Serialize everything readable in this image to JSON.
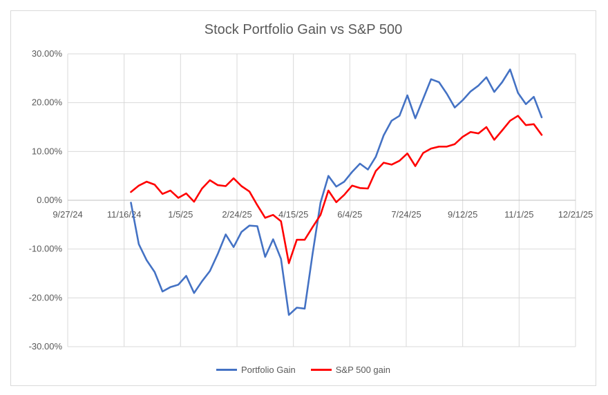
{
  "chart_data": {
    "type": "line",
    "title": "Stock Portfolio Gain vs S&P 500",
    "xlabel": "",
    "ylabel": "",
    "x_axis": {
      "min_date": "2024-09-27",
      "max_date": "2025-12-21",
      "tick_dates": [
        "2024-09-27",
        "2024-11-16",
        "2025-01-05",
        "2025-02-24",
        "2025-04-15",
        "2025-06-04",
        "2025-07-24",
        "2025-09-12",
        "2025-11-01",
        "2025-12-21"
      ],
      "tick_labels": [
        "9/27/24",
        "11/16/24",
        "1/5/25",
        "2/24/25",
        "4/15/25",
        "6/4/25",
        "7/24/25",
        "9/12/25",
        "11/1/25",
        "12/21/25"
      ]
    },
    "y_axis": {
      "ylim": [
        -0.3,
        0.3
      ],
      "ticks": [
        -0.3,
        -0.2,
        -0.1,
        0.0,
        0.1,
        0.2,
        0.3
      ],
      "tick_labels": [
        "-30.00%",
        "-20.00%",
        "-10.00%",
        "0.00%",
        "10.00%",
        "20.00%",
        "30.00%"
      ]
    },
    "grid": "horizontal and vertical gridlines",
    "legend_position": "bottom",
    "series": [
      {
        "name": "Portfolio Gain",
        "color": "#4472c4",
        "x": [
          "2024-11-22",
          "2024-11-29",
          "2024-12-06",
          "2024-12-13",
          "2024-12-20",
          "2024-12-27",
          "2025-01-03",
          "2025-01-10",
          "2025-01-17",
          "2025-01-24",
          "2025-01-31",
          "2025-02-07",
          "2025-02-14",
          "2025-02-21",
          "2025-02-28",
          "2025-03-07",
          "2025-03-14",
          "2025-03-21",
          "2025-03-28",
          "2025-04-04",
          "2025-04-11",
          "2025-04-18",
          "2025-04-25",
          "2025-05-02",
          "2025-05-09",
          "2025-05-16",
          "2025-05-23",
          "2025-05-30",
          "2025-06-06",
          "2025-06-13",
          "2025-06-20",
          "2025-06-27",
          "2025-07-04",
          "2025-07-11",
          "2025-07-18",
          "2025-07-25",
          "2025-08-01",
          "2025-08-08",
          "2025-08-15",
          "2025-08-22",
          "2025-08-29",
          "2025-09-05",
          "2025-09-12",
          "2025-09-19",
          "2025-09-26",
          "2025-10-03",
          "2025-10-10",
          "2025-10-17",
          "2025-10-24",
          "2025-10-31",
          "2025-11-07",
          "2025-11-14",
          "2025-11-21"
        ],
        "y": [
          -0.005,
          -0.09,
          -0.123,
          -0.147,
          -0.187,
          -0.178,
          -0.173,
          -0.155,
          -0.19,
          -0.166,
          -0.145,
          -0.11,
          -0.07,
          -0.096,
          -0.065,
          -0.052,
          -0.053,
          -0.116,
          -0.08,
          -0.12,
          -0.235,
          -0.22,
          -0.222,
          -0.11,
          -0.005,
          0.05,
          0.028,
          0.038,
          0.058,
          0.075,
          0.063,
          0.089,
          0.133,
          0.163,
          0.173,
          0.215,
          0.168,
          0.208,
          0.248,
          0.242,
          0.218,
          0.19,
          0.205,
          0.223,
          0.235,
          0.252,
          0.222,
          0.242,
          0.268,
          0.22,
          0.197,
          0.212,
          0.17
        ]
      },
      {
        "name": "S&P 500 gain",
        "color": "#ff0000",
        "x": [
          "2024-11-22",
          "2024-11-29",
          "2024-12-06",
          "2024-12-13",
          "2024-12-20",
          "2024-12-27",
          "2025-01-03",
          "2025-01-10",
          "2025-01-17",
          "2025-01-24",
          "2025-01-31",
          "2025-02-07",
          "2025-02-14",
          "2025-02-21",
          "2025-02-28",
          "2025-03-07",
          "2025-03-14",
          "2025-03-21",
          "2025-03-28",
          "2025-04-04",
          "2025-04-11",
          "2025-04-18",
          "2025-04-25",
          "2025-05-02",
          "2025-05-09",
          "2025-05-16",
          "2025-05-23",
          "2025-05-30",
          "2025-06-06",
          "2025-06-13",
          "2025-06-20",
          "2025-06-27",
          "2025-07-04",
          "2025-07-11",
          "2025-07-18",
          "2025-07-25",
          "2025-08-01",
          "2025-08-08",
          "2025-08-15",
          "2025-08-22",
          "2025-08-29",
          "2025-09-05",
          "2025-09-12",
          "2025-09-19",
          "2025-09-26",
          "2025-10-03",
          "2025-10-10",
          "2025-10-17",
          "2025-10-24",
          "2025-10-31",
          "2025-11-07",
          "2025-11-14",
          "2025-11-21"
        ],
        "y": [
          0.017,
          0.03,
          0.038,
          0.032,
          0.013,
          0.02,
          0.005,
          0.014,
          -0.003,
          0.024,
          0.041,
          0.031,
          0.029,
          0.045,
          0.029,
          0.018,
          -0.01,
          -0.036,
          -0.03,
          -0.043,
          -0.129,
          -0.081,
          -0.081,
          -0.055,
          -0.03,
          0.02,
          -0.004,
          0.011,
          0.03,
          0.025,
          0.024,
          0.06,
          0.077,
          0.073,
          0.081,
          0.096,
          0.07,
          0.097,
          0.106,
          0.11,
          0.11,
          0.115,
          0.13,
          0.14,
          0.137,
          0.15,
          0.124,
          0.143,
          0.163,
          0.173,
          0.154,
          0.156,
          0.134
        ]
      }
    ]
  }
}
